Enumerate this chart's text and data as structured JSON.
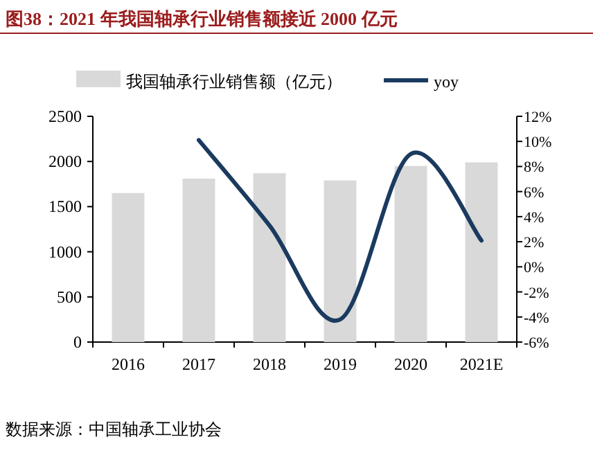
{
  "chart_data": {
    "type": "bar",
    "title": "图38：2021 年我国轴承行业销售额接近 2000 亿元",
    "categories": [
      "2016",
      "2017",
      "2018",
      "2019",
      "2020",
      "2021E"
    ],
    "series": [
      {
        "name": "我国轴承行业销售额（亿元）",
        "color": "#d9d9d9",
        "values": [
          1650,
          1810,
          1870,
          1790,
          1950,
          1990
        ]
      },
      {
        "name": "yoy",
        "type": "line",
        "axis": "y2",
        "color": "#1b3a5f",
        "values": [
          null,
          10.1,
          3.3,
          -4.2,
          9.0,
          2.1
        ]
      }
    ],
    "ylim": [
      0,
      2500
    ],
    "yticks": [
      0,
      500,
      1000,
      1500,
      2000,
      2500
    ],
    "y2lim": [
      -6,
      12
    ],
    "y2ticks": [
      {
        "value": -6,
        "label": "-6%"
      },
      {
        "value": -4,
        "label": "-4%"
      },
      {
        "value": -2,
        "label": "-2%"
      },
      {
        "value": 0,
        "label": "0%"
      },
      {
        "value": 2,
        "label": "2%"
      },
      {
        "value": 4,
        "label": "4%"
      },
      {
        "value": 6,
        "label": "6%"
      },
      {
        "value": 8,
        "label": "8%"
      },
      {
        "value": 10,
        "label": "10%"
      },
      {
        "value": 12,
        "label": "12%"
      }
    ],
    "legend": "top",
    "grid": false,
    "annotations": [
      "数据来源：中国轴承工业协会"
    ]
  }
}
